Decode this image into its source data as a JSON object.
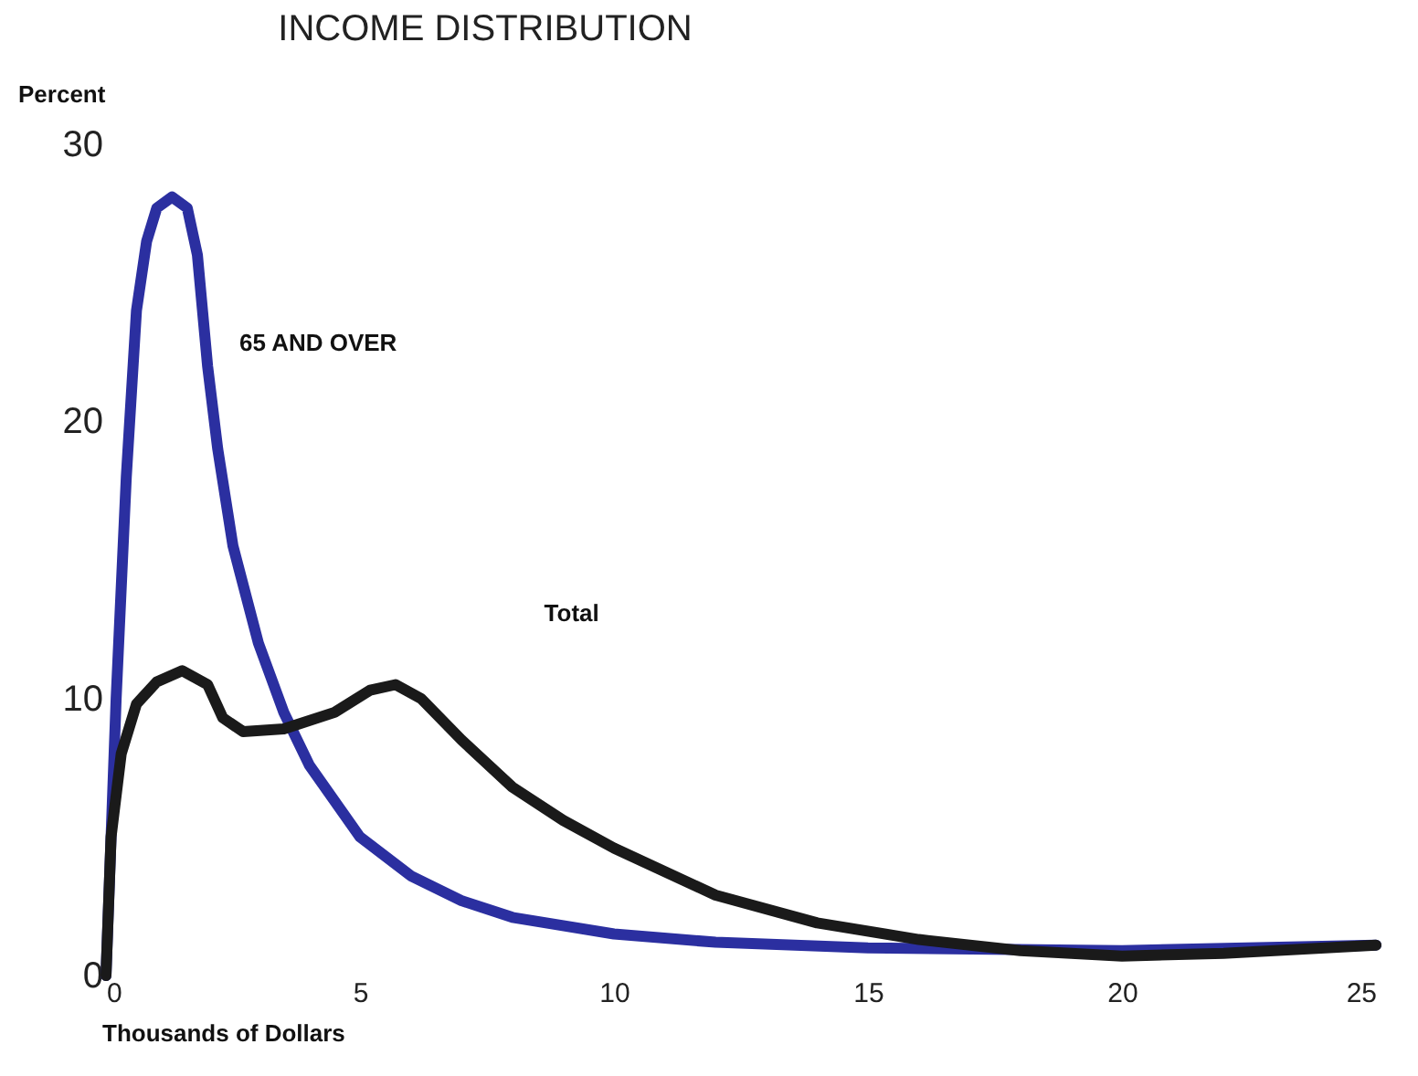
{
  "chart_data": {
    "type": "line",
    "title": "INCOME DISTRIBUTION",
    "xlabel": "Thousands of Dollars",
    "ylabel": "Percent",
    "xlim": [
      0,
      25
    ],
    "xticks": [
      0,
      5,
      10,
      15,
      20,
      25
    ],
    "ylim": [
      0,
      30
    ],
    "yticks": [
      0,
      10,
      20,
      30
    ],
    "grid": false,
    "line_style": "solid",
    "marker": "none",
    "series": [
      {
        "color": "#2b2fa0",
        "x": [
          0,
          0.2,
          0.4,
          0.6,
          0.8,
          1.0,
          1.3,
          1.6,
          1.8,
          2.0,
          2.2,
          2.5,
          3,
          3.5,
          4,
          5,
          6,
          7,
          8,
          10,
          12,
          15,
          20,
          25
        ],
        "values": [
          0,
          10,
          18,
          24,
          26.5,
          27.7,
          28.1,
          27.7,
          26,
          22,
          19,
          15.5,
          12,
          9.5,
          7.6,
          5,
          3.6,
          2.7,
          2.1,
          1.5,
          1.2,
          1.0,
          0.9,
          1.1
        ]
      },
      {
        "color": "#1a1a1a",
        "x": [
          0,
          0.1,
          0.3,
          0.6,
          1,
          1.5,
          2,
          2.3,
          2.7,
          3.5,
          4.5,
          5.2,
          5.7,
          6.2,
          7,
          8,
          9,
          10,
          12,
          14,
          16,
          18,
          20,
          22,
          25
        ],
        "values": [
          0,
          5,
          8,
          9.8,
          10.6,
          11,
          10.5,
          9.3,
          8.8,
          8.9,
          9.5,
          10.3,
          10.5,
          10,
          8.5,
          6.8,
          5.6,
          4.6,
          2.9,
          1.9,
          1.3,
          0.9,
          0.7,
          0.8,
          1.1
        ]
      }
    ],
    "annotations": [
      "65 AND OVER",
      "Total"
    ]
  }
}
